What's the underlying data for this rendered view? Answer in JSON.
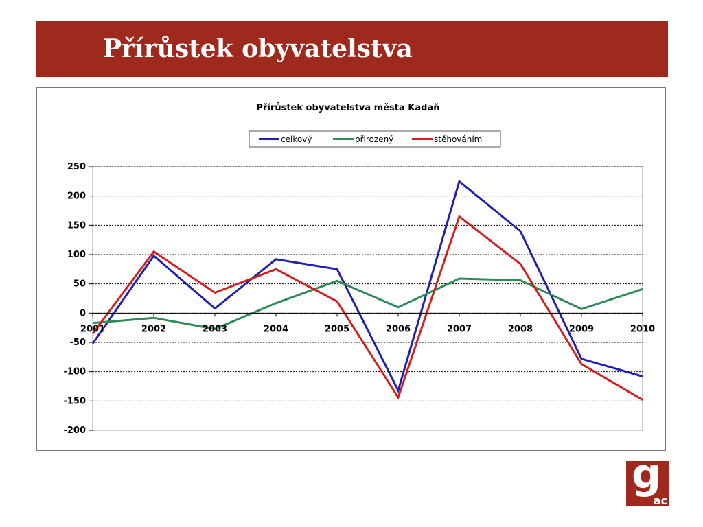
{
  "slide": {
    "title": "Přírůstek obyvatelstva",
    "logo": {
      "letter": "g",
      "suffix": "ac"
    },
    "colors": {
      "banner": "#a0291e",
      "logo": "#a0291e"
    }
  },
  "chart_data": {
    "type": "line",
    "title": "Přírůstek obyvatelstva města Kadaň",
    "xlabel": "",
    "ylabel": "",
    "categories": [
      "2001",
      "2002",
      "2003",
      "2004",
      "2005",
      "2006",
      "2007",
      "2008",
      "2009",
      "2010"
    ],
    "ylim": [
      -200,
      250
    ],
    "yticks": [
      250,
      200,
      150,
      100,
      50,
      0,
      -50,
      -100,
      -150,
      -200
    ],
    "grid": true,
    "legend_position": "top",
    "series": [
      {
        "name": "celkový",
        "color": "#1f1fb0",
        "values": [
          -52,
          98,
          8,
          92,
          75,
          -132,
          225,
          140,
          -78,
          -108
        ]
      },
      {
        "name": "přirozený",
        "color": "#2e8b57",
        "values": [
          -17,
          -8,
          -27,
          17,
          55,
          10,
          59,
          56,
          7,
          41
        ]
      },
      {
        "name": "stěhováním",
        "color": "#d12020",
        "values": [
          -35,
          105,
          35,
          75,
          20,
          -144,
          165,
          84,
          -87,
          -148
        ]
      }
    ]
  }
}
